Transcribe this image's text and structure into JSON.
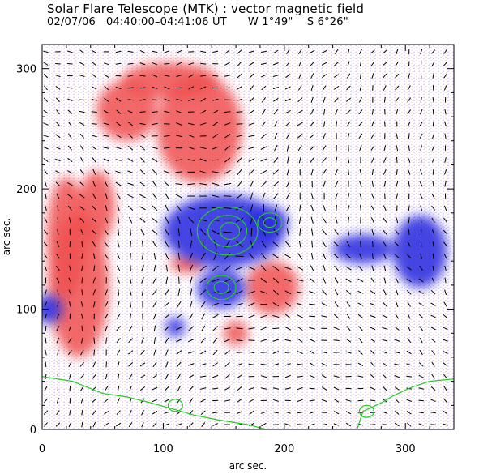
{
  "figure": {
    "title": "Solar Flare Telescope (MTK) : vector magnetic field",
    "subtitle": "02/07/06   04:40:00–04:41:06 UT      W 1°49\"    S 6°26\""
  },
  "chart_data": {
    "type": "heatmap",
    "title": "Solar Flare Telescope (MTK) : vector magnetic field",
    "xlabel": "arc sec.",
    "ylabel": "arc sec.",
    "xlim": [
      0,
      340
    ],
    "ylim": [
      0,
      320
    ],
    "x_ticks": [
      0,
      100,
      200,
      300
    ],
    "y_ticks": [
      0,
      100,
      200,
      300
    ],
    "colors": {
      "positive_polarity": "#f05050",
      "negative_polarity": "#3030e0",
      "contour": "#22cc22",
      "vector": "#000000"
    },
    "negative_regions": [
      {
        "cx": 150,
        "cy": 165,
        "rx": 50,
        "ry": 30
      },
      {
        "cx": 185,
        "cy": 172,
        "rx": 18,
        "ry": 14
      },
      {
        "cx": 148,
        "cy": 117,
        "rx": 20,
        "ry": 16
      },
      {
        "cx": 312,
        "cy": 148,
        "rx": 22,
        "ry": 30
      },
      {
        "cx": 265,
        "cy": 150,
        "rx": 25,
        "ry": 12
      },
      {
        "cx": 5,
        "cy": 100,
        "rx": 12,
        "ry": 12
      },
      {
        "cx": 110,
        "cy": 85,
        "rx": 8,
        "ry": 8
      }
    ],
    "positive_regions": [
      {
        "cx": 30,
        "cy": 120,
        "rx": 25,
        "ry": 60
      },
      {
        "cx": 20,
        "cy": 160,
        "rx": 16,
        "ry": 50
      },
      {
        "cx": 45,
        "cy": 185,
        "rx": 15,
        "ry": 30
      },
      {
        "cx": 130,
        "cy": 250,
        "rx": 35,
        "ry": 45
      },
      {
        "cx": 70,
        "cy": 265,
        "rx": 25,
        "ry": 25
      },
      {
        "cx": 105,
        "cy": 290,
        "rx": 40,
        "ry": 15
      },
      {
        "cx": 190,
        "cy": 118,
        "rx": 22,
        "ry": 22
      },
      {
        "cx": 160,
        "cy": 80,
        "rx": 10,
        "ry": 10
      },
      {
        "cx": 120,
        "cy": 138,
        "rx": 14,
        "ry": 8
      }
    ],
    "contours": [
      {
        "cx": 153,
        "cy": 165,
        "rx": 25,
        "ry": 20
      },
      {
        "cx": 153,
        "cy": 165,
        "rx": 16,
        "ry": 13
      },
      {
        "cx": 155,
        "cy": 165,
        "rx": 8,
        "ry": 7
      },
      {
        "cx": 188,
        "cy": 172,
        "rx": 10,
        "ry": 8
      },
      {
        "cx": 188,
        "cy": 172,
        "rx": 5,
        "ry": 4
      },
      {
        "cx": 148,
        "cy": 118,
        "rx": 12,
        "ry": 10
      },
      {
        "cx": 148,
        "cy": 118,
        "rx": 6,
        "ry": 5
      },
      {
        "cx": 110,
        "cy": 20,
        "rx": 6,
        "ry": 5
      },
      {
        "cx": 268,
        "cy": 15,
        "rx": 6,
        "ry": 5
      }
    ],
    "limb_lines": [
      [
        [
          0,
          44
        ],
        [
          25,
          40
        ],
        [
          50,
          30
        ],
        [
          70,
          27
        ],
        [
          90,
          22
        ],
        [
          115,
          15
        ],
        [
          125,
          12
        ],
        [
          145,
          8
        ],
        [
          170,
          4
        ],
        [
          185,
          0
        ]
      ],
      [
        [
          260,
          0
        ],
        [
          265,
          15
        ],
        [
          280,
          22
        ],
        [
          290,
          28
        ],
        [
          305,
          35
        ],
        [
          320,
          40
        ],
        [
          340,
          42
        ]
      ]
    ]
  }
}
